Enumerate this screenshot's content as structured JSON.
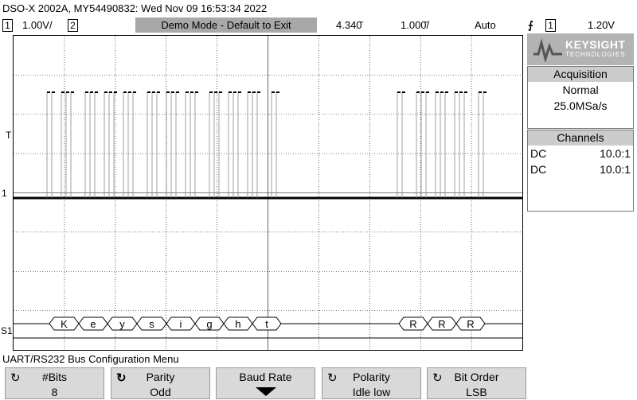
{
  "title": "DSO-X 2002A, MY54490832: Wed Nov 09 16:53:34 2022",
  "status": {
    "ch1_num": "1",
    "ch1_scale": "1.00V/",
    "ch2_num": "2",
    "mode": "Demo Mode - Default to Exit",
    "delay": "4.340̆",
    "timebase": "1.000̆/",
    "trigger_mode": "Auto",
    "trigger_src_num": "1",
    "trigger_level": "1.20V"
  },
  "brand": {
    "name": "KEYSIGHT",
    "sub": "TECHNOLOGIES"
  },
  "acquisition": {
    "header": "Acquisition",
    "mode": "Normal",
    "rate": "25.0MSa/s"
  },
  "channels": {
    "header": "Channels",
    "rows": [
      {
        "coupling": "DC",
        "probe": "10.0:1"
      },
      {
        "coupling": "DC",
        "probe": "10.0:1"
      }
    ]
  },
  "markers": {
    "trigger": "T",
    "ch1": "1",
    "serial": "S1"
  },
  "decode": [
    "K",
    "e",
    "y",
    "s",
    "i",
    "g",
    "h",
    "t",
    "R",
    "R",
    "R"
  ],
  "menu_title": "UART/RS232 Bus Configuration Menu",
  "softkeys": [
    {
      "label": "#Bits",
      "value": "8",
      "icon": "rotate-knob-icon"
    },
    {
      "label": "Parity",
      "value": "Odd",
      "icon": "rotate-knob-icon"
    },
    {
      "label": "Baud Rate",
      "value": "",
      "icon": "down-arrow-icon"
    },
    {
      "label": "Polarity",
      "value": "Idle low",
      "icon": "rotate-knob-icon"
    },
    {
      "label": "Bit Order",
      "value": "LSB",
      "icon": "rotate-knob-icon"
    }
  ],
  "colors": {
    "grid": "#000000",
    "demo_bg": "#a8a8a8",
    "softkey_bg": "#d9d9d9"
  }
}
